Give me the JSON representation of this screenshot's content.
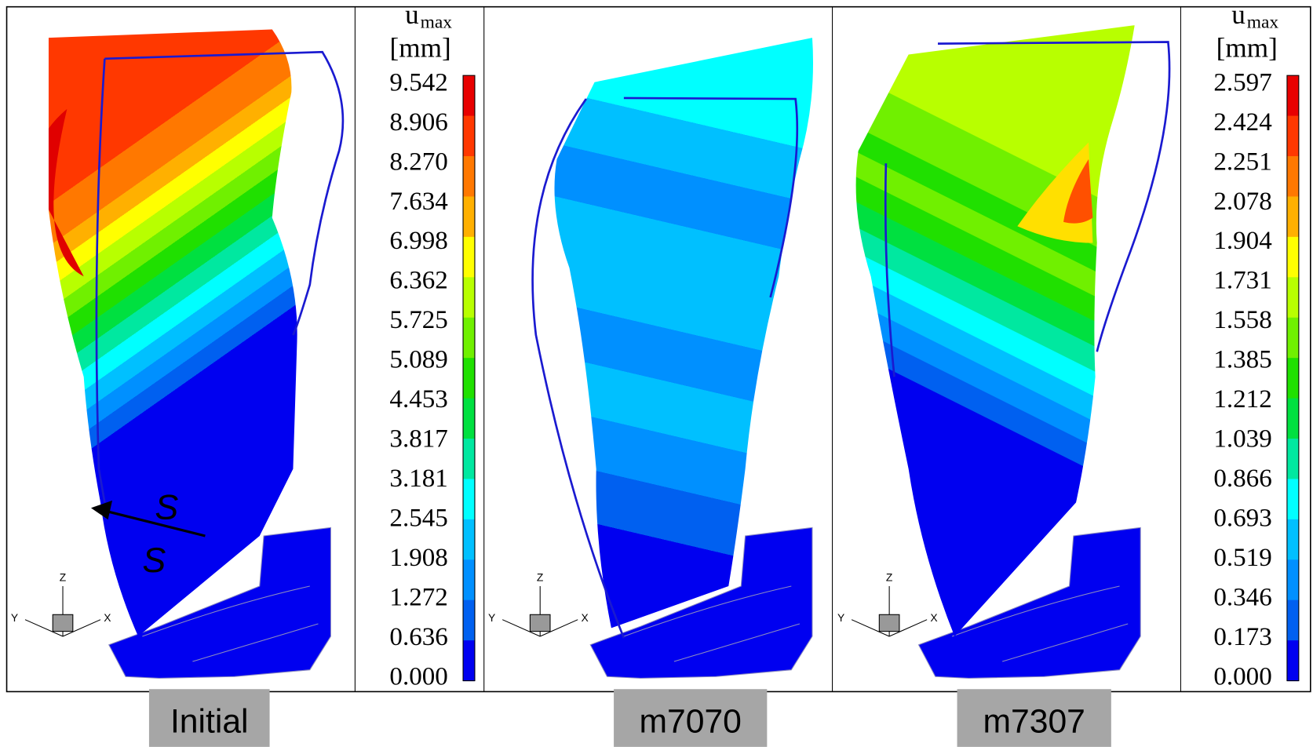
{
  "panels": [
    {
      "label": "Initial"
    },
    {
      "label": "m7070"
    },
    {
      "label": "m7307"
    }
  ],
  "colorbars": [
    {
      "title": "u",
      "subscript": "max",
      "unit": "[mm]",
      "ticks": [
        "9.542",
        "8.906",
        "8.270",
        "7.634",
        "6.998",
        "6.362",
        "5.725",
        "5.089",
        "4.453",
        "3.817",
        "3.181",
        "2.545",
        "1.908",
        "1.272",
        "0.636",
        "0.000"
      ]
    },
    {
      "title": "u",
      "subscript": "max",
      "unit": "[mm]",
      "ticks": [
        "2.597",
        "2.424",
        "2.251",
        "2.078",
        "1.904",
        "1.731",
        "1.558",
        "1.385",
        "1.212",
        "1.039",
        "0.866",
        "0.693",
        "0.519",
        "0.346",
        "0.173",
        "0.000"
      ]
    }
  ],
  "annotations": {
    "s_upper": "S",
    "s_lower": "S"
  },
  "axes": {
    "x": "X",
    "y": "Y",
    "z": "Z"
  }
}
